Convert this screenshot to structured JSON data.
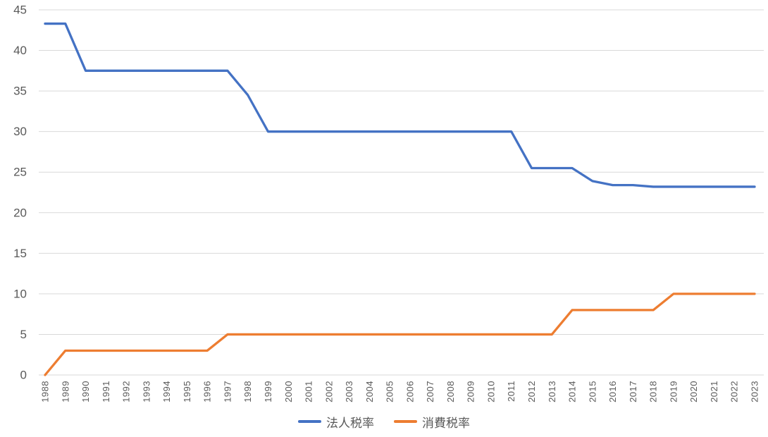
{
  "chart_data": {
    "type": "line",
    "title": "",
    "xlabel": "",
    "ylabel": "",
    "categories": [
      "1988",
      "1989",
      "1990",
      "1991",
      "1992",
      "1993",
      "1994",
      "1995",
      "1996",
      "1997",
      "1998",
      "1999",
      "2000",
      "2001",
      "2002",
      "2003",
      "2004",
      "2005",
      "2006",
      "2007",
      "2008",
      "2009",
      "2010",
      "2011",
      "2012",
      "2013",
      "2014",
      "2015",
      "2016",
      "2017",
      "2018",
      "2019",
      "2020",
      "2021",
      "2022",
      "2023"
    ],
    "series": [
      {
        "name": "法人税率",
        "color": "#4472C4",
        "values": [
          43.3,
          43.3,
          37.5,
          37.5,
          37.5,
          37.5,
          37.5,
          37.5,
          37.5,
          37.5,
          34.5,
          30,
          30,
          30,
          30,
          30,
          30,
          30,
          30,
          30,
          30,
          30,
          30,
          30,
          25.5,
          25.5,
          25.5,
          23.9,
          23.4,
          23.4,
          23.2,
          23.2,
          23.2,
          23.2,
          23.2,
          23.2
        ]
      },
      {
        "name": "消費税率",
        "color": "#ED7D31",
        "values": [
          0,
          3,
          3,
          3,
          3,
          3,
          3,
          3,
          3,
          5,
          5,
          5,
          5,
          5,
          5,
          5,
          5,
          5,
          5,
          5,
          5,
          5,
          5,
          5,
          5,
          5,
          8,
          8,
          8,
          8,
          8,
          10,
          10,
          10,
          10,
          10
        ]
      }
    ],
    "ylim": [
      0,
      45
    ],
    "yticks": [
      0,
      5,
      10,
      15,
      20,
      25,
      30,
      35,
      40,
      45
    ],
    "grid": true,
    "legend_position": "bottom",
    "colors": {
      "gridline": "#D9D9D9",
      "axis_text": "#595959",
      "background": "#FFFFFF"
    }
  }
}
